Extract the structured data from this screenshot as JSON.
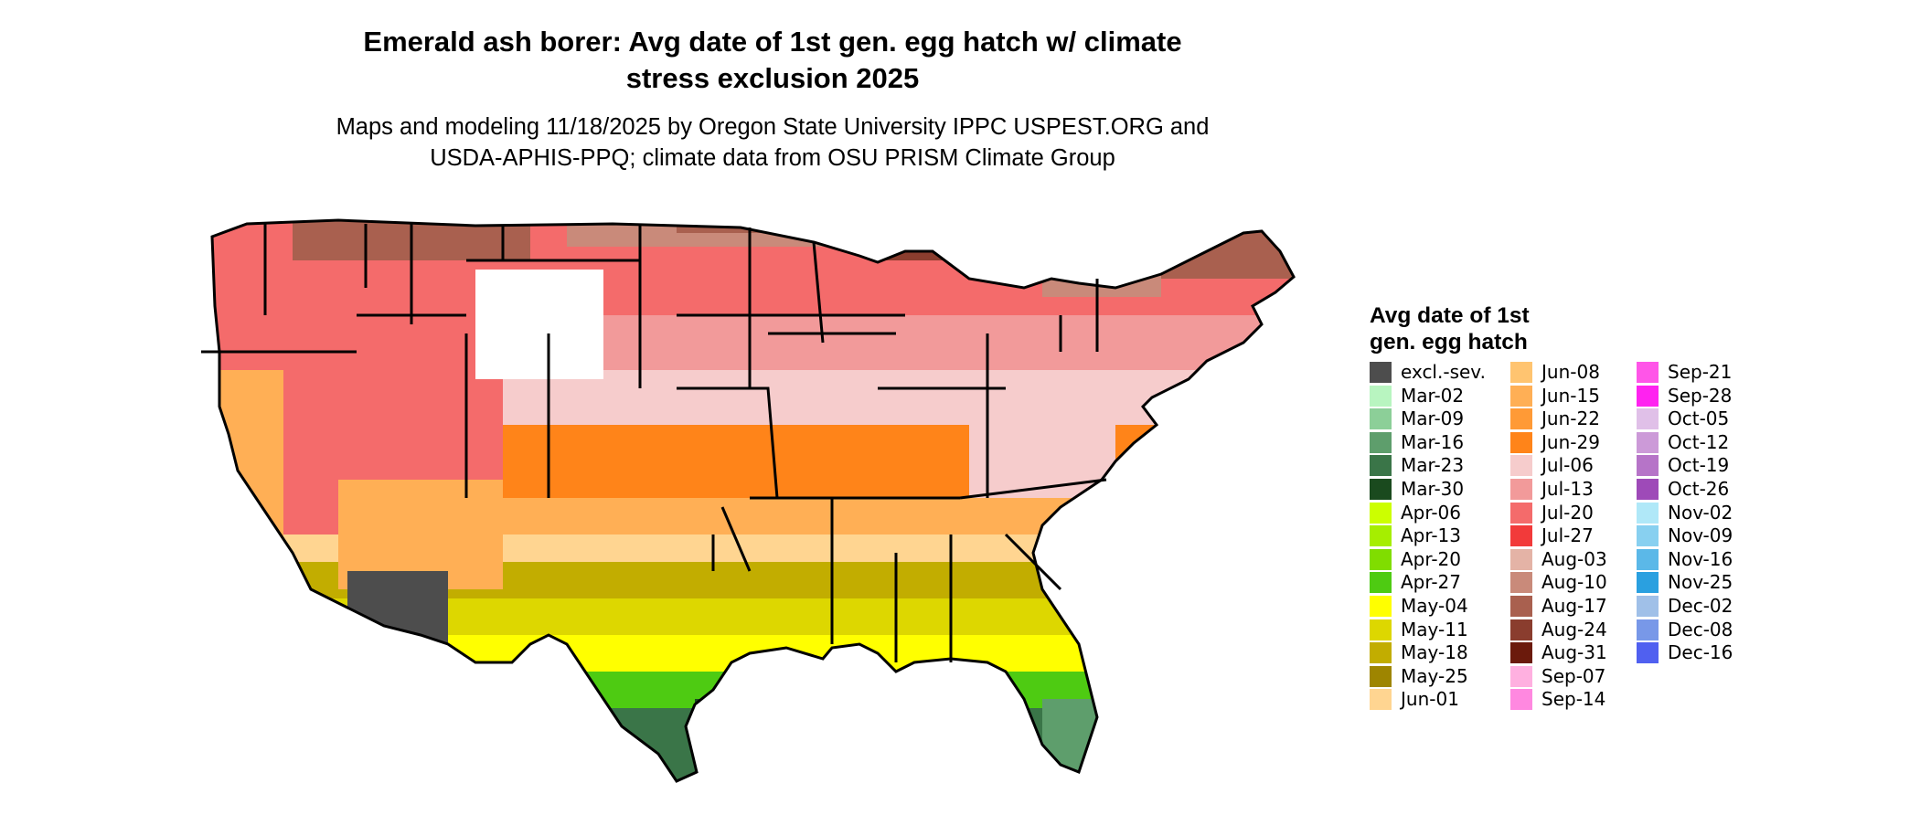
{
  "title_line1": "Emerald ash borer: Avg date of 1st gen. egg hatch w/ climate",
  "title_line2": "stress exclusion 2025",
  "subtitle_line1": "Maps and modeling 11/18/2025 by Oregon State University IPPC USPEST.ORG and",
  "subtitle_line2": "USDA-APHIS-PPQ; climate data from OSU PRISM Climate Group",
  "legend": {
    "title_line1": "Avg date of 1st",
    "title_line2": "gen. egg hatch",
    "items": [
      {
        "label": "excl.-sev.",
        "color": "#4d4d4d"
      },
      {
        "label": "Mar-02",
        "color": "#b8f5c0"
      },
      {
        "label": "Mar-09",
        "color": "#8ccf98"
      },
      {
        "label": "Mar-16",
        "color": "#5e9e6c"
      },
      {
        "label": "Mar-23",
        "color": "#3a7548"
      },
      {
        "label": "Mar-30",
        "color": "#1a4a1e"
      },
      {
        "label": "Apr-06",
        "color": "#ccff00"
      },
      {
        "label": "Apr-13",
        "color": "#a6ee00"
      },
      {
        "label": "Apr-20",
        "color": "#80dd00"
      },
      {
        "label": "Apr-27",
        "color": "#4ecb12"
      },
      {
        "label": "May-04",
        "color": "#ffff00"
      },
      {
        "label": "May-11",
        "color": "#ddd700"
      },
      {
        "label": "May-18",
        "color": "#c2ad00"
      },
      {
        "label": "May-25",
        "color": "#9e8500"
      },
      {
        "label": "Jun-01",
        "color": "#ffd591"
      },
      {
        "label": "Jun-08",
        "color": "#ffc470"
      },
      {
        "label": "Jun-15",
        "color": "#ffaf55"
      },
      {
        "label": "Jun-22",
        "color": "#ff9a36"
      },
      {
        "label": "Jun-29",
        "color": "#ff8419"
      },
      {
        "label": "Jul-06",
        "color": "#f6cccc"
      },
      {
        "label": "Jul-13",
        "color": "#f29a9a"
      },
      {
        "label": "Jul-20",
        "color": "#f46b6b"
      },
      {
        "label": "Jul-27",
        "color": "#f23a3a"
      },
      {
        "label": "Aug-03",
        "color": "#e4b3a6"
      },
      {
        "label": "Aug-10",
        "color": "#c98a7a"
      },
      {
        "label": "Aug-17",
        "color": "#a9604f"
      },
      {
        "label": "Aug-24",
        "color": "#8a3d2e"
      },
      {
        "label": "Aug-31",
        "color": "#6b1a0c"
      },
      {
        "label": "Sep-07",
        "color": "#ffb0e0"
      },
      {
        "label": "Sep-14",
        "color": "#ff88e0"
      },
      {
        "label": "Sep-21",
        "color": "#ff55e8"
      },
      {
        "label": "Sep-28",
        "color": "#ff22f0"
      },
      {
        "label": "Oct-05",
        "color": "#e0c0e8"
      },
      {
        "label": "Oct-12",
        "color": "#cc9ad8"
      },
      {
        "label": "Oct-19",
        "color": "#b674c8"
      },
      {
        "label": "Oct-26",
        "color": "#9e4ab8"
      },
      {
        "label": "Nov-02",
        "color": "#b0e8f8"
      },
      {
        "label": "Nov-09",
        "color": "#88d0f0"
      },
      {
        "label": "Nov-16",
        "color": "#5bb8e8"
      },
      {
        "label": "Nov-25",
        "color": "#2aa0e0"
      },
      {
        "label": "Dec-02",
        "color": "#a0c0e8"
      },
      {
        "label": "Dec-08",
        "color": "#7898e8"
      },
      {
        "label": "Dec-16",
        "color": "#5060f0"
      }
    ]
  }
}
